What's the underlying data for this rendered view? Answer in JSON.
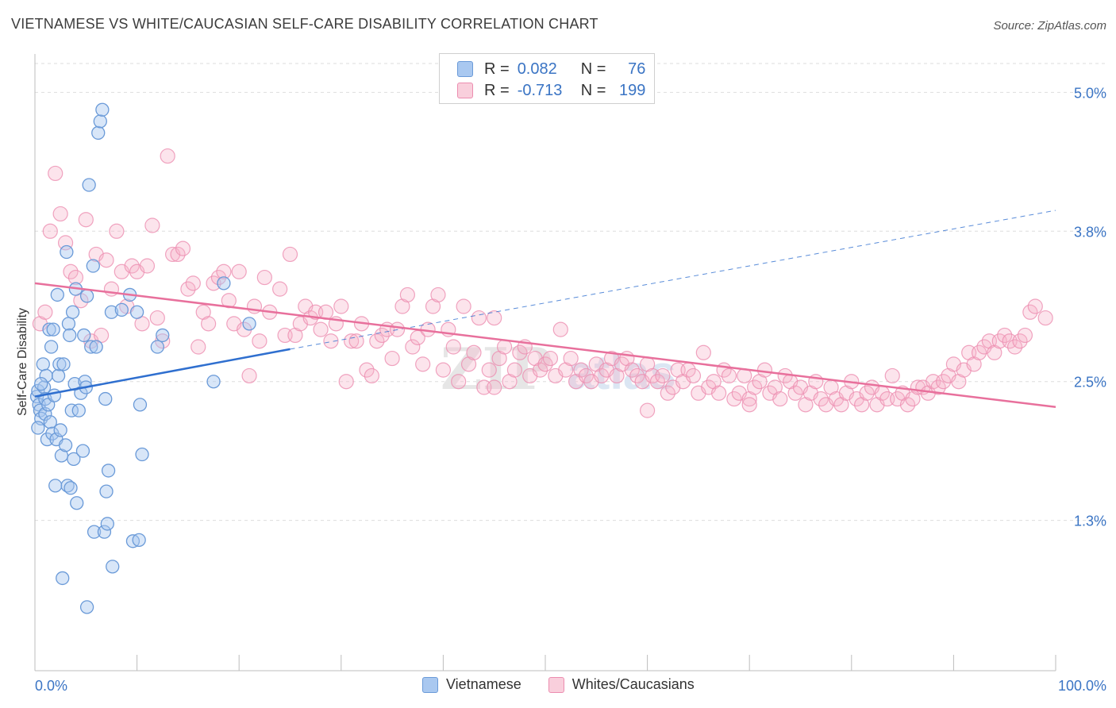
{
  "header": {
    "title": "VIETNAMESE VS WHITE/CAUCASIAN SELF-CARE DISABILITY CORRELATION CHART",
    "source": "Source: ZipAtlas.com"
  },
  "legend_top": {
    "rows": [
      {
        "r_label": "R =",
        "r_value": "0.082",
        "n_label": "N =",
        "n_value": "76"
      },
      {
        "r_label": "R =",
        "r_value": "-0.713",
        "n_label": "N =",
        "n_value": "199"
      }
    ]
  },
  "legend_bottom": {
    "items": [
      {
        "label": "Vietnamese"
      },
      {
        "label": "Whites/Caucasians"
      }
    ]
  },
  "colors": {
    "blue_fill": "#a9c8f0",
    "blue_stroke": "#6a9ad8",
    "blue_line": "#2f6fcf",
    "pink_fill": "#f5b3c8",
    "pink_stroke": "#ec8db0",
    "pink_line": "#e8709c",
    "grid": "#dddddd",
    "axis_text": "#3a74c4"
  },
  "watermark": {
    "part1": "ZIP",
    "part2": "atlas"
  },
  "chart_data": {
    "type": "scatter",
    "title": "VIETNAMESE VS WHITE/CAUCASIAN SELF-CARE DISABILITY CORRELATION CHART",
    "xlabel": "",
    "ylabel": "Self-Care Disability",
    "xlim": [
      0,
      100
    ],
    "ylim": [
      0,
      5.25
    ],
    "x_tick_labels": [
      "0.0%",
      "100.0%"
    ],
    "y_ticks": [
      1.3,
      2.5,
      3.8,
      5.0
    ],
    "y_tick_labels": [
      "1.3%",
      "2.5%",
      "3.8%",
      "5.0%"
    ],
    "grid": true,
    "legend_position": "top-center",
    "series": [
      {
        "name": "Vietnamese",
        "r": 0.082,
        "n": 76,
        "trend": {
          "x0": 0,
          "y0": 2.37,
          "x1": 25,
          "y1": 2.78,
          "dashed_to_x": 100,
          "dashed_to_y": 3.98
        },
        "points": [
          [
            0.2,
            2.37
          ],
          [
            0.3,
            2.42
          ],
          [
            0.4,
            2.3
          ],
          [
            0.5,
            2.25
          ],
          [
            0.6,
            2.18
          ],
          [
            0.3,
            2.1
          ],
          [
            0.8,
            2.65
          ],
          [
            0.9,
            2.45
          ],
          [
            1.0,
            2.35
          ],
          [
            1.0,
            2.22
          ],
          [
            1.1,
            2.55
          ],
          [
            1.2,
            2.0
          ],
          [
            1.3,
            2.3
          ],
          [
            1.4,
            2.95
          ],
          [
            1.5,
            2.15
          ],
          [
            1.6,
            2.8
          ],
          [
            1.7,
            2.05
          ],
          [
            1.8,
            2.95
          ],
          [
            1.9,
            2.38
          ],
          [
            2.0,
            1.6
          ],
          [
            2.1,
            2.0
          ],
          [
            2.2,
            3.25
          ],
          [
            2.3,
            2.55
          ],
          [
            2.4,
            2.65
          ],
          [
            2.5,
            2.08
          ],
          [
            2.6,
            1.86
          ],
          [
            2.8,
            2.65
          ],
          [
            3.0,
            1.95
          ],
          [
            3.1,
            3.62
          ],
          [
            3.2,
            1.6
          ],
          [
            3.3,
            3.0
          ],
          [
            3.4,
            2.9
          ],
          [
            3.5,
            1.58
          ],
          [
            3.6,
            2.25
          ],
          [
            3.7,
            3.1
          ],
          [
            3.8,
            1.83
          ],
          [
            3.9,
            2.48
          ],
          [
            4.0,
            3.3
          ],
          [
            4.1,
            1.45
          ],
          [
            4.3,
            2.25
          ],
          [
            4.5,
            2.4
          ],
          [
            4.7,
            1.9
          ],
          [
            4.8,
            2.9
          ],
          [
            4.9,
            2.5
          ],
          [
            5.0,
            2.45
          ],
          [
            5.1,
            3.24
          ],
          [
            5.3,
            4.2
          ],
          [
            5.5,
            2.8
          ],
          [
            5.7,
            3.5
          ],
          [
            5.8,
            1.2
          ],
          [
            6.0,
            2.8
          ],
          [
            6.2,
            4.65
          ],
          [
            6.4,
            4.75
          ],
          [
            6.6,
            4.85
          ],
          [
            6.8,
            1.2
          ],
          [
            6.9,
            2.35
          ],
          [
            7.0,
            1.55
          ],
          [
            7.1,
            1.27
          ],
          [
            7.2,
            1.73
          ],
          [
            7.5,
            3.1
          ],
          [
            7.6,
            0.9
          ],
          [
            8.5,
            3.12
          ],
          [
            9.3,
            3.25
          ],
          [
            9.6,
            1.12
          ],
          [
            10.0,
            3.1
          ],
          [
            10.3,
            2.3
          ],
          [
            10.5,
            1.87
          ],
          [
            12.0,
            2.8
          ],
          [
            12.5,
            2.9
          ],
          [
            17.5,
            2.5
          ],
          [
            18.5,
            3.35
          ],
          [
            21.0,
            3.0
          ],
          [
            2.7,
            0.8
          ],
          [
            5.1,
            0.55
          ],
          [
            10.2,
            1.13
          ],
          [
            0.6,
            2.48
          ]
        ]
      },
      {
        "name": "Whites/Caucasians",
        "r": -0.713,
        "n": 199,
        "trend": {
          "x0": 0,
          "y0": 3.35,
          "x1": 100,
          "y1": 2.28
        },
        "points": [
          [
            0.5,
            3.0
          ],
          [
            1.0,
            3.1
          ],
          [
            1.5,
            3.8
          ],
          [
            2.0,
            4.3
          ],
          [
            2.5,
            3.95
          ],
          [
            3.0,
            3.7
          ],
          [
            3.5,
            3.45
          ],
          [
            4.0,
            3.4
          ],
          [
            4.5,
            3.2
          ],
          [
            5.0,
            3.9
          ],
          [
            5.5,
            2.85
          ],
          [
            6.0,
            3.6
          ],
          [
            6.5,
            2.9
          ],
          [
            7.0,
            3.55
          ],
          [
            7.5,
            3.3
          ],
          [
            8.0,
            3.8
          ],
          [
            8.5,
            3.45
          ],
          [
            9.0,
            3.15
          ],
          [
            9.5,
            3.5
          ],
          [
            10.0,
            3.45
          ],
          [
            10.5,
            3.0
          ],
          [
            11.0,
            3.5
          ],
          [
            11.5,
            3.85
          ],
          [
            12.0,
            3.05
          ],
          [
            12.5,
            2.85
          ],
          [
            13.0,
            4.45
          ],
          [
            13.5,
            3.6
          ],
          [
            14.0,
            3.6
          ],
          [
            14.5,
            3.65
          ],
          [
            15.0,
            3.3
          ],
          [
            15.5,
            3.35
          ],
          [
            16.0,
            2.8
          ],
          [
            16.5,
            3.1
          ],
          [
            17.0,
            3.0
          ],
          [
            17.5,
            3.35
          ],
          [
            18.0,
            3.4
          ],
          [
            18.5,
            3.45
          ],
          [
            19.0,
            3.2
          ],
          [
            19.5,
            3.0
          ],
          [
            20.0,
            3.45
          ],
          [
            20.5,
            2.95
          ],
          [
            21.0,
            2.55
          ],
          [
            21.5,
            3.15
          ],
          [
            22.0,
            2.85
          ],
          [
            22.5,
            3.4
          ],
          [
            23.0,
            3.1
          ],
          [
            24.0,
            3.3
          ],
          [
            24.5,
            2.9
          ],
          [
            25.0,
            3.6
          ],
          [
            25.5,
            2.9
          ],
          [
            26.0,
            3.0
          ],
          [
            26.5,
            3.15
          ],
          [
            27.0,
            3.05
          ],
          [
            27.5,
            3.1
          ],
          [
            28.0,
            2.95
          ],
          [
            28.5,
            3.1
          ],
          [
            29.0,
            2.85
          ],
          [
            29.5,
            3.0
          ],
          [
            30.0,
            3.15
          ],
          [
            30.5,
            2.5
          ],
          [
            31.0,
            2.85
          ],
          [
            31.5,
            2.85
          ],
          [
            32.0,
            3.0
          ],
          [
            32.5,
            2.6
          ],
          [
            33.0,
            2.55
          ],
          [
            33.5,
            2.85
          ],
          [
            34.0,
            2.9
          ],
          [
            34.5,
            2.95
          ],
          [
            35.0,
            2.7
          ],
          [
            35.5,
            2.95
          ],
          [
            36.0,
            3.15
          ],
          [
            36.5,
            3.25
          ],
          [
            37.0,
            2.8
          ],
          [
            37.5,
            2.88
          ],
          [
            38.0,
            2.65
          ],
          [
            38.5,
            2.95
          ],
          [
            39.0,
            3.15
          ],
          [
            39.5,
            3.25
          ],
          [
            40.0,
            2.6
          ],
          [
            40.5,
            2.95
          ],
          [
            41.0,
            2.8
          ],
          [
            41.5,
            2.5
          ],
          [
            42.0,
            3.15
          ],
          [
            42.5,
            2.65
          ],
          [
            43.0,
            2.75
          ],
          [
            43.5,
            3.05
          ],
          [
            44.0,
            2.45
          ],
          [
            44.5,
            2.6
          ],
          [
            45.0,
            3.05
          ],
          [
            45.5,
            2.7
          ],
          [
            46.0,
            2.8
          ],
          [
            46.5,
            2.5
          ],
          [
            47.0,
            2.6
          ],
          [
            47.5,
            2.75
          ],
          [
            48.0,
            2.8
          ],
          [
            48.5,
            2.55
          ],
          [
            49.0,
            2.7
          ],
          [
            49.5,
            2.6
          ],
          [
            50.0,
            2.65
          ],
          [
            50.5,
            2.7
          ],
          [
            51.0,
            2.55
          ],
          [
            51.5,
            2.95
          ],
          [
            52.0,
            2.6
          ],
          [
            52.5,
            2.7
          ],
          [
            53.0,
            2.5
          ],
          [
            53.5,
            2.6
          ],
          [
            54.0,
            2.55
          ],
          [
            54.5,
            2.5
          ],
          [
            55.0,
            2.65
          ],
          [
            55.5,
            2.55
          ],
          [
            56.0,
            2.6
          ],
          [
            56.5,
            2.7
          ],
          [
            57.0,
            2.55
          ],
          [
            57.5,
            2.65
          ],
          [
            58.0,
            2.7
          ],
          [
            58.5,
            2.6
          ],
          [
            59.0,
            2.55
          ],
          [
            59.5,
            2.5
          ],
          [
            60.0,
            2.65
          ],
          [
            60.5,
            2.55
          ],
          [
            61.0,
            2.5
          ],
          [
            61.5,
            2.55
          ],
          [
            62.0,
            2.4
          ],
          [
            62.5,
            2.45
          ],
          [
            63.0,
            2.6
          ],
          [
            63.5,
            2.5
          ],
          [
            64.0,
            2.6
          ],
          [
            64.5,
            2.55
          ],
          [
            65.0,
            2.4
          ],
          [
            65.5,
            2.75
          ],
          [
            66.0,
            2.45
          ],
          [
            66.5,
            2.5
          ],
          [
            67.0,
            2.4
          ],
          [
            67.5,
            2.6
          ],
          [
            68.0,
            2.55
          ],
          [
            68.5,
            2.35
          ],
          [
            69.0,
            2.4
          ],
          [
            69.5,
            2.55
          ],
          [
            70.0,
            2.35
          ],
          [
            70.5,
            2.45
          ],
          [
            71.0,
            2.5
          ],
          [
            71.5,
            2.6
          ],
          [
            72.0,
            2.4
          ],
          [
            72.5,
            2.45
          ],
          [
            73.0,
            2.35
          ],
          [
            73.5,
            2.55
          ],
          [
            74.0,
            2.5
          ],
          [
            74.5,
            2.4
          ],
          [
            75.0,
            2.45
          ],
          [
            75.5,
            2.3
          ],
          [
            76.0,
            2.4
          ],
          [
            76.5,
            2.5
          ],
          [
            77.0,
            2.35
          ],
          [
            77.5,
            2.3
          ],
          [
            78.0,
            2.45
          ],
          [
            78.5,
            2.35
          ],
          [
            79.0,
            2.3
          ],
          [
            79.5,
            2.4
          ],
          [
            80.0,
            2.5
          ],
          [
            80.5,
            2.35
          ],
          [
            81.0,
            2.3
          ],
          [
            81.5,
            2.4
          ],
          [
            82.0,
            2.45
          ],
          [
            82.5,
            2.3
          ],
          [
            83.0,
            2.4
          ],
          [
            83.5,
            2.35
          ],
          [
            84.0,
            2.55
          ],
          [
            84.5,
            2.35
          ],
          [
            85.0,
            2.4
          ],
          [
            85.5,
            2.3
          ],
          [
            86.0,
            2.35
          ],
          [
            86.5,
            2.45
          ],
          [
            87.0,
            2.45
          ],
          [
            87.5,
            2.4
          ],
          [
            88.0,
            2.5
          ],
          [
            88.5,
            2.45
          ],
          [
            89.0,
            2.5
          ],
          [
            89.5,
            2.55
          ],
          [
            90.0,
            2.65
          ],
          [
            90.5,
            2.5
          ],
          [
            91.0,
            2.6
          ],
          [
            91.5,
            2.75
          ],
          [
            92.0,
            2.65
          ],
          [
            92.5,
            2.75
          ],
          [
            93.0,
            2.8
          ],
          [
            93.5,
            2.85
          ],
          [
            94.0,
            2.75
          ],
          [
            94.5,
            2.85
          ],
          [
            95.0,
            2.9
          ],
          [
            95.5,
            2.85
          ],
          [
            96.0,
            2.8
          ],
          [
            96.5,
            2.85
          ],
          [
            97.0,
            2.9
          ],
          [
            97.5,
            3.1
          ],
          [
            98.0,
            3.15
          ],
          [
            99.0,
            3.05
          ],
          [
            45.0,
            2.45
          ],
          [
            60.0,
            2.25
          ],
          [
            70.0,
            2.3
          ]
        ]
      }
    ]
  }
}
